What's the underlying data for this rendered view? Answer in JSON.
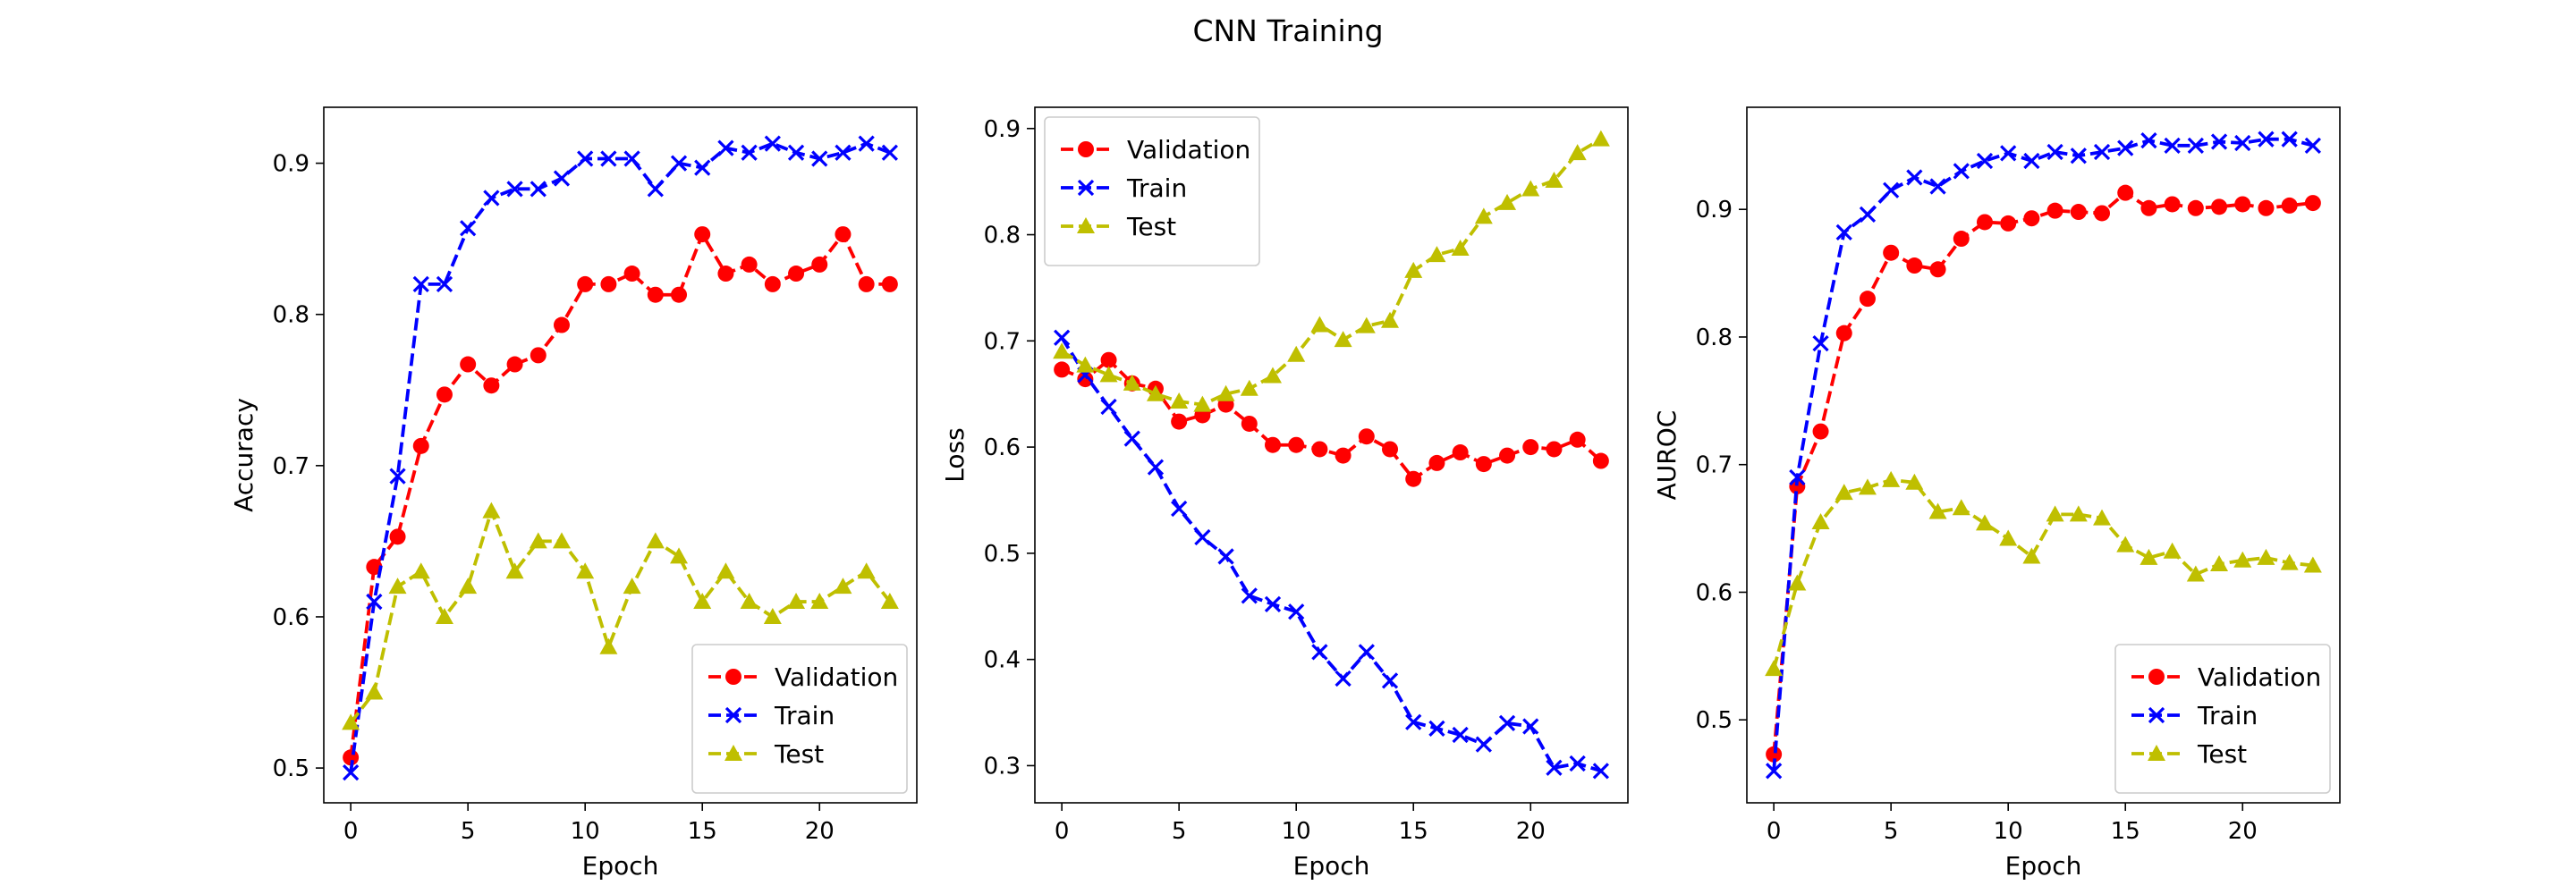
{
  "figure": {
    "title": "CNN Training"
  },
  "chart_data": [
    {
      "type": "line",
      "xlabel": "Epoch",
      "ylabel": "Accuracy",
      "xlim": [
        -1.15,
        24.15
      ],
      "ylim": [
        0.477,
        0.937
      ],
      "xticks": [
        0,
        5,
        10,
        15,
        20
      ],
      "yticks": [
        0.5,
        0.6,
        0.7,
        0.8,
        0.9
      ],
      "legend_position": "lower-right",
      "x": [
        0,
        1,
        2,
        3,
        4,
        5,
        6,
        7,
        8,
        9,
        10,
        11,
        12,
        13,
        14,
        15,
        16,
        17,
        18,
        19,
        20,
        21,
        22,
        23
      ],
      "series": [
        {
          "name": "Validation",
          "color": "#ff0000",
          "marker": "circle",
          "values": [
            0.507,
            0.633,
            0.653,
            0.713,
            0.747,
            0.767,
            0.753,
            0.767,
            0.773,
            0.793,
            0.82,
            0.82,
            0.827,
            0.813,
            0.813,
            0.853,
            0.827,
            0.833,
            0.82,
            0.827,
            0.833,
            0.853,
            0.82,
            0.82
          ]
        },
        {
          "name": "Train",
          "color": "#0000ff",
          "marker": "x",
          "values": [
            0.497,
            0.61,
            0.693,
            0.82,
            0.82,
            0.857,
            0.877,
            0.883,
            0.883,
            0.89,
            0.903,
            0.903,
            0.903,
            0.883,
            0.9,
            0.897,
            0.91,
            0.907,
            0.913,
            0.907,
            0.903,
            0.907,
            0.913,
            0.907
          ]
        },
        {
          "name": "Test",
          "color": "#bfbf00",
          "marker": "triangle",
          "values": [
            0.53,
            0.55,
            0.62,
            0.63,
            0.6,
            0.62,
            0.67,
            0.63,
            0.65,
            0.65,
            0.63,
            0.58,
            0.62,
            0.65,
            0.64,
            0.61,
            0.63,
            0.61,
            0.6,
            0.61,
            0.61,
            0.62,
            0.63,
            0.61
          ]
        }
      ]
    },
    {
      "type": "line",
      "xlabel": "Epoch",
      "ylabel": "Loss",
      "xlim": [
        -1.15,
        24.15
      ],
      "ylim": [
        0.265,
        0.92
      ],
      "xticks": [
        0,
        5,
        10,
        15,
        20
      ],
      "yticks": [
        0.3,
        0.4,
        0.5,
        0.6,
        0.7,
        0.8,
        0.9
      ],
      "legend_position": "upper-left",
      "x": [
        0,
        1,
        2,
        3,
        4,
        5,
        6,
        7,
        8,
        9,
        10,
        11,
        12,
        13,
        14,
        15,
        16,
        17,
        18,
        19,
        20,
        21,
        22,
        23
      ],
      "series": [
        {
          "name": "Validation",
          "color": "#ff0000",
          "marker": "circle",
          "values": [
            0.673,
            0.664,
            0.682,
            0.66,
            0.655,
            0.624,
            0.63,
            0.64,
            0.622,
            0.602,
            0.602,
            0.598,
            0.592,
            0.61,
            0.598,
            0.57,
            0.585,
            0.595,
            0.584,
            0.592,
            0.6,
            0.598,
            0.607,
            0.587
          ]
        },
        {
          "name": "Train",
          "color": "#0000ff",
          "marker": "x",
          "values": [
            0.703,
            0.668,
            0.638,
            0.608,
            0.581,
            0.542,
            0.515,
            0.497,
            0.46,
            0.452,
            0.445,
            0.407,
            0.382,
            0.407,
            0.38,
            0.341,
            0.335,
            0.329,
            0.32,
            0.34,
            0.337,
            0.298,
            0.302,
            0.295
          ]
        },
        {
          "name": "Test",
          "color": "#bfbf00",
          "marker": "triangle",
          "values": [
            0.69,
            0.677,
            0.668,
            0.66,
            0.65,
            0.643,
            0.64,
            0.65,
            0.655,
            0.667,
            0.687,
            0.715,
            0.701,
            0.714,
            0.719,
            0.766,
            0.781,
            0.787,
            0.817,
            0.83,
            0.843,
            0.851,
            0.877,
            0.89
          ]
        }
      ]
    },
    {
      "type": "line",
      "xlabel": "Epoch",
      "ylabel": "AUROC",
      "xlim": [
        -1.15,
        24.15
      ],
      "ylim": [
        0.435,
        0.98
      ],
      "xticks": [
        0,
        5,
        10,
        15,
        20
      ],
      "yticks": [
        0.5,
        0.6,
        0.7,
        0.8,
        0.9
      ],
      "legend_position": "lower-right",
      "x": [
        0,
        1,
        2,
        3,
        4,
        5,
        6,
        7,
        8,
        9,
        10,
        11,
        12,
        13,
        14,
        15,
        16,
        17,
        18,
        19,
        20,
        21,
        22,
        23
      ],
      "series": [
        {
          "name": "Validation",
          "color": "#ff0000",
          "marker": "circle",
          "values": [
            0.473,
            0.683,
            0.726,
            0.803,
            0.83,
            0.866,
            0.856,
            0.853,
            0.877,
            0.89,
            0.889,
            0.893,
            0.899,
            0.898,
            0.897,
            0.913,
            0.901,
            0.904,
            0.901,
            0.902,
            0.904,
            0.901,
            0.903,
            0.905
          ]
        },
        {
          "name": "Train",
          "color": "#0000ff",
          "marker": "x",
          "values": [
            0.46,
            0.69,
            0.795,
            0.882,
            0.896,
            0.915,
            0.925,
            0.918,
            0.93,
            0.938,
            0.944,
            0.938,
            0.945,
            0.942,
            0.945,
            0.948,
            0.954,
            0.95,
            0.95,
            0.953,
            0.952,
            0.955,
            0.955,
            0.95
          ]
        },
        {
          "name": "Test",
          "color": "#bfbf00",
          "marker": "triangle",
          "values": [
            0.54,
            0.607,
            0.655,
            0.678,
            0.682,
            0.688,
            0.686,
            0.663,
            0.666,
            0.654,
            0.642,
            0.628,
            0.661,
            0.661,
            0.658,
            0.637,
            0.627,
            0.632,
            0.614,
            0.622,
            0.625,
            0.627,
            0.623,
            0.621
          ]
        }
      ]
    }
  ]
}
